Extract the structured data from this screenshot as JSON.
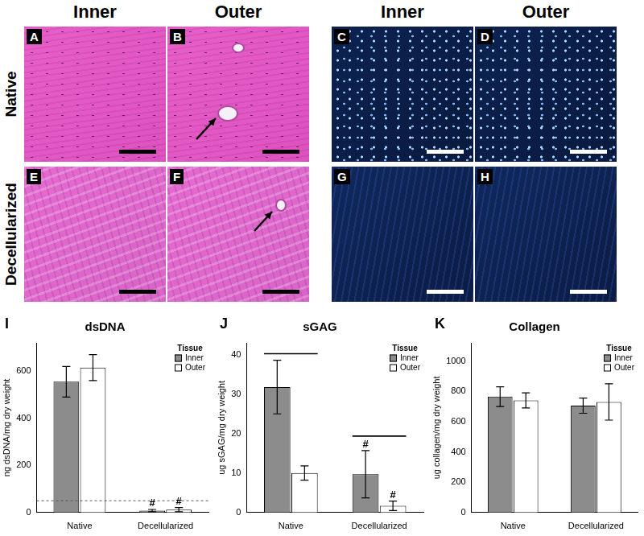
{
  "figure": {
    "columns": [
      "Inner",
      "Outer",
      "Inner",
      "Outer"
    ],
    "rows": [
      "Native",
      "Decellularized"
    ],
    "panels": [
      [
        "A",
        "B",
        "C",
        "D"
      ],
      [
        "E",
        "F",
        "G",
        "H"
      ]
    ]
  },
  "chart_data": [
    {
      "type": "bar",
      "panel": "I",
      "title": "dsDNA",
      "y_label": "ng dsDNA/mg dry weight",
      "categories": [
        "Native",
        "Decellularized"
      ],
      "series": [
        {
          "name": "Inner",
          "color": "#8c8c8c",
          "values": [
            555,
            8
          ],
          "errors": [
            65,
            5
          ]
        },
        {
          "name": "Outer",
          "color": "#ffffff",
          "values": [
            615,
            12
          ],
          "errors": [
            55,
            9
          ]
        }
      ],
      "ylim": [
        0,
        720
      ],
      "yticks": [
        0,
        200,
        400,
        600
      ],
      "grid": false,
      "legend": "top-right",
      "legend_title": "Tissue",
      "reference_line": 50,
      "annotations": [
        {
          "text": "#",
          "category": "Decellularized",
          "series": "Inner"
        },
        {
          "text": "#",
          "category": "Decellularized",
          "series": "Outer"
        }
      ]
    },
    {
      "type": "bar",
      "panel": "J",
      "title": "sGAG",
      "y_label": "ug sGAG/mg dry weight",
      "categories": [
        "Native",
        "Decellularized"
      ],
      "series": [
        {
          "name": "Inner",
          "color": "#8c8c8c",
          "values": [
            31.8,
            9.7
          ],
          "errors": [
            6.8,
            6
          ]
        },
        {
          "name": "Outer",
          "color": "#ffffff",
          "values": [
            10,
            1.7
          ],
          "errors": [
            1.8,
            1.2
          ]
        }
      ],
      "ylim": [
        0,
        43
      ],
      "yticks": [
        0,
        10,
        20,
        30,
        40
      ],
      "grid": false,
      "legend": "top-right",
      "legend_title": "Tissue",
      "comparisons": [
        "Native",
        "Decellularized"
      ],
      "annotations": [
        {
          "text": "#",
          "category": "Decellularized",
          "series": "Inner"
        },
        {
          "text": "#",
          "category": "Decellularized",
          "series": "Outer"
        }
      ]
    },
    {
      "type": "bar",
      "panel": "K",
      "title": "Collagen",
      "y_label": "ug collagen/mg dry weight",
      "categories": [
        "Native",
        "Decellularized"
      ],
      "series": [
        {
          "name": "Inner",
          "color": "#8c8c8c",
          "values": [
            765,
            705
          ],
          "errors": [
            65,
            50
          ]
        },
        {
          "name": "Outer",
          "color": "#ffffff",
          "values": [
            740,
            730
          ],
          "errors": [
            50,
            120
          ]
        }
      ],
      "ylim": [
        0,
        1120
      ],
      "yticks": [
        0,
        200,
        400,
        600,
        800,
        1000
      ],
      "grid": false,
      "legend": "top-right",
      "legend_title": "Tissue"
    }
  ]
}
